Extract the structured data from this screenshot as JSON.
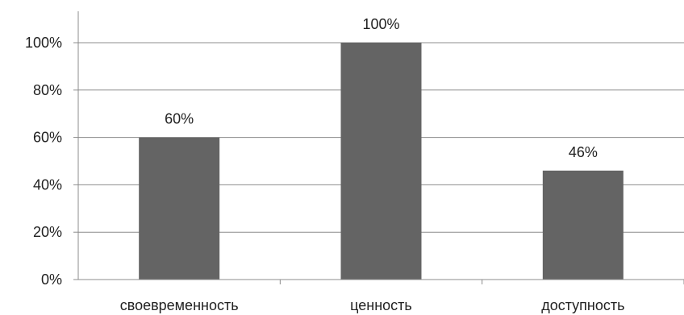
{
  "chart_data": {
    "type": "bar",
    "categories": [
      "своевременность",
      "ценность",
      "доступность"
    ],
    "values": [
      60,
      100,
      46
    ],
    "data_labels": [
      "60%",
      "100%",
      "46%"
    ],
    "y_ticks": [
      0,
      20,
      40,
      60,
      80,
      100
    ],
    "y_tick_labels": [
      "0%",
      "20%",
      "40%",
      "60%",
      "80%",
      "100%"
    ],
    "ylim": [
      0,
      100
    ],
    "grid": true,
    "bar_color": "#646464",
    "grid_color": "#8c8c8c"
  }
}
